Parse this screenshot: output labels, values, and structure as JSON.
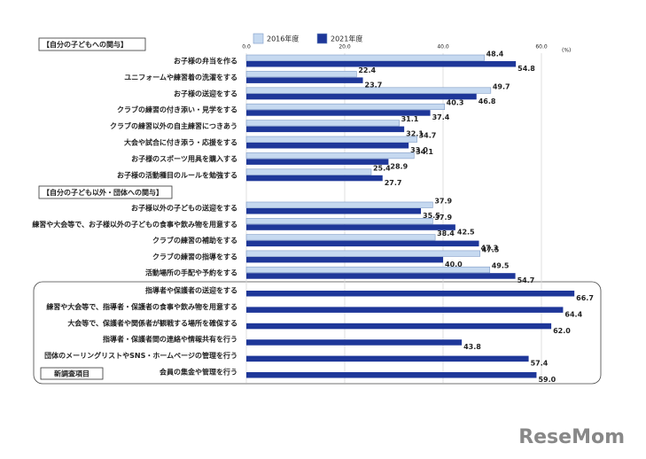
{
  "chart_data": {
    "type": "hbar",
    "section_labels": [
      "【自分の子どもへの関与】",
      "【自分の子ども以外・団体への関与】",
      "新調査項目"
    ],
    "x_unit": "(%)",
    "categories": [
      "お子様の弁当を作る",
      "ユニフォームや練習着の洗濯をする",
      "お子様の送迎をする",
      "クラブの練習の付き添い・見学をする",
      "クラブの練習以外の自主練習につきあう",
      "大会や試合に付き添う・応援をする",
      "お子様のスポーツ用具を購入する",
      "お子様の活動種目のルールを勉強する",
      "お子様以外の子どもの送迎をする",
      "練習や大会等で、お子様以外の子どもの食事や飲み物を用意する",
      "クラブの練習の補助をする",
      "クラブの練習の指導をする",
      "活動場所の手配や予約をする",
      "指導者や保護者の送迎をする",
      "練習や大会等で、指導者・保護者の食事や飲み物を用意する",
      "大会等で、保護者や関係者が観戦する場所を確保する",
      "指導者・保護者間の連絡や情報共有を行う",
      "団体のメーリングリストやSNS・ホームページの管理を行う",
      "会員の集金や管理を行う"
    ],
    "series": [
      {
        "name": "2016年度",
        "color": "#c6d9f0",
        "values": [
          48.4,
          22.4,
          49.7,
          40.3,
          31.1,
          34.7,
          34.1,
          25.4,
          37.9,
          37.9,
          38.4,
          47.5,
          49.5,
          null,
          null,
          null,
          null,
          null,
          null
        ],
        "value_labels": [
          "48.4",
          "22.4",
          "49.7",
          "40.3",
          "31.1",
          "34.7",
          "34.1",
          "25.4",
          "37.9",
          "37.9",
          "38.4",
          "47.5",
          "49.5",
          null,
          null,
          null,
          null,
          null,
          null
        ]
      },
      {
        "name": "2021年度",
        "color": "#1e3799",
        "values": [
          54.8,
          23.7,
          46.8,
          37.4,
          32.1,
          33.0,
          28.9,
          27.7,
          35.5,
          42.5,
          47.3,
          40.0,
          54.7,
          66.7,
          64.4,
          62.0,
          43.8,
          57.4,
          59.0
        ],
        "value_labels": [
          "54.8",
          "23.7",
          "46.8",
          "37.4",
          "32.1",
          "33.0",
          "28.9",
          "27.7",
          "35.5",
          "42.5",
          "47.3",
          "40.0",
          "54.7",
          "66.7",
          "64.4",
          "62.0",
          "43.8",
          "57.4",
          "59.0"
        ]
      }
    ],
    "xlim": [
      0,
      70
    ],
    "xticks": [
      {
        "value": 0,
        "label": "0.0"
      },
      {
        "value": 20,
        "label": "20.0"
      },
      {
        "value": 40,
        "label": "40.0"
      },
      {
        "value": 60,
        "label": "60.0"
      }
    ],
    "grid": true,
    "watermark": "ReseMom"
  }
}
